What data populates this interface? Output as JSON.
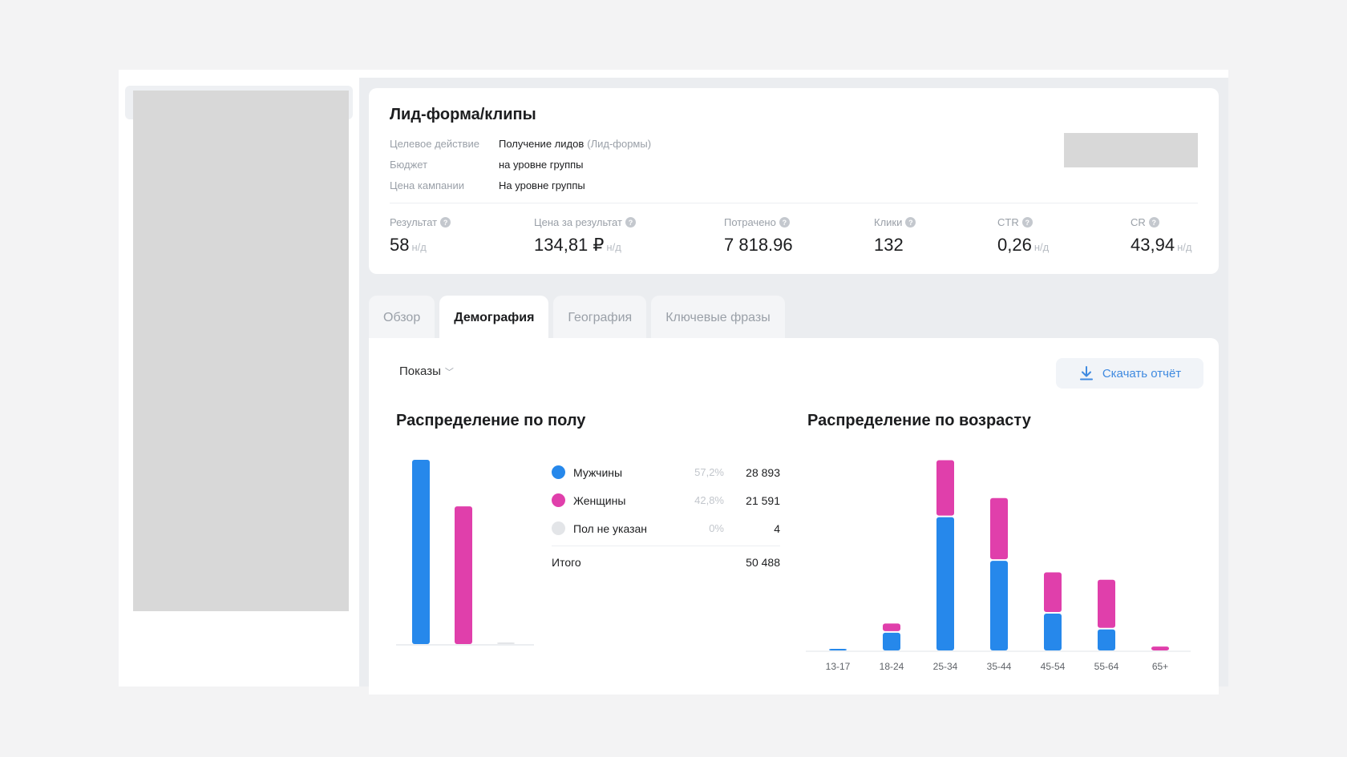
{
  "campaign": {
    "title": "Лид-форма/клипы",
    "info": [
      {
        "label": "Целевое действие",
        "value": "Получение лидов",
        "suffix": "(Лид-формы)"
      },
      {
        "label": "Бюджет",
        "value": "на уровне группы",
        "suffix": ""
      },
      {
        "label": "Цена кампании",
        "value": "На уровне группы",
        "suffix": ""
      }
    ]
  },
  "metrics": [
    {
      "label": "Результат",
      "value": "58",
      "na": "н/д"
    },
    {
      "label": "Цена за результат",
      "value": "134,81 ₽",
      "na": "н/д"
    },
    {
      "label": "Потрачено",
      "value": "7 818.96",
      "na": ""
    },
    {
      "label": "Клики",
      "value": "132",
      "na": ""
    },
    {
      "label": "CTR",
      "value": "0,26",
      "na": "н/д"
    },
    {
      "label": "CR",
      "value": "43,94",
      "na": "н/д"
    }
  ],
  "help_glyph": "?",
  "tabs": [
    {
      "label": "Обзор",
      "active": false
    },
    {
      "label": "Демография",
      "active": true
    },
    {
      "label": "География",
      "active": false
    },
    {
      "label": "Ключевые фразы",
      "active": false
    }
  ],
  "toolbar": {
    "metric_select": "Показы",
    "chevron_glyph": "﹀",
    "download_label": "Скачать отчёт"
  },
  "colors": {
    "male": "#2688eb",
    "female": "#e03fab",
    "unknown": "#e3e5e8",
    "accent": "#3f8ae0"
  },
  "gender": {
    "title": "Распределение по полу",
    "rows": [
      {
        "name": "Мужчины",
        "pct": "57,2%",
        "value": "28 893",
        "color_key": "male"
      },
      {
        "name": "Женщины",
        "pct": "42,8%",
        "value": "21 591",
        "color_key": "female"
      },
      {
        "name": "Пол не указан",
        "pct": "0%",
        "value": "4",
        "color_key": "unknown"
      }
    ],
    "total_label": "Итого",
    "total_value": "50 488"
  },
  "age": {
    "title": "Распределение по возрасту"
  },
  "chart_data": [
    {
      "type": "bar",
      "title": "Распределение по полу",
      "categories": [
        "Мужчины",
        "Женщины",
        "Пол не указан"
      ],
      "values": [
        28893,
        21591,
        4
      ],
      "xlabel": "",
      "ylabel": "Показы",
      "ylim": [
        0,
        28893
      ],
      "grid": false
    },
    {
      "type": "bar",
      "stacked": true,
      "title": "Распределение по возрасту",
      "categories": [
        "13-17",
        "18-24",
        "25-34",
        "35-44",
        "45-54",
        "55-64",
        "65+"
      ],
      "series": [
        {
          "name": "Мужчины",
          "values": [
            80,
            1710,
            12860,
            8650,
            3560,
            2030,
            0
          ]
        },
        {
          "name": "Женщины",
          "values": [
            0,
            890,
            5500,
            6060,
            3980,
            4790,
            380
          ]
        }
      ],
      "xlabel": "",
      "ylabel": "Показы",
      "ylim": [
        0,
        18400
      ],
      "grid": false
    }
  ]
}
